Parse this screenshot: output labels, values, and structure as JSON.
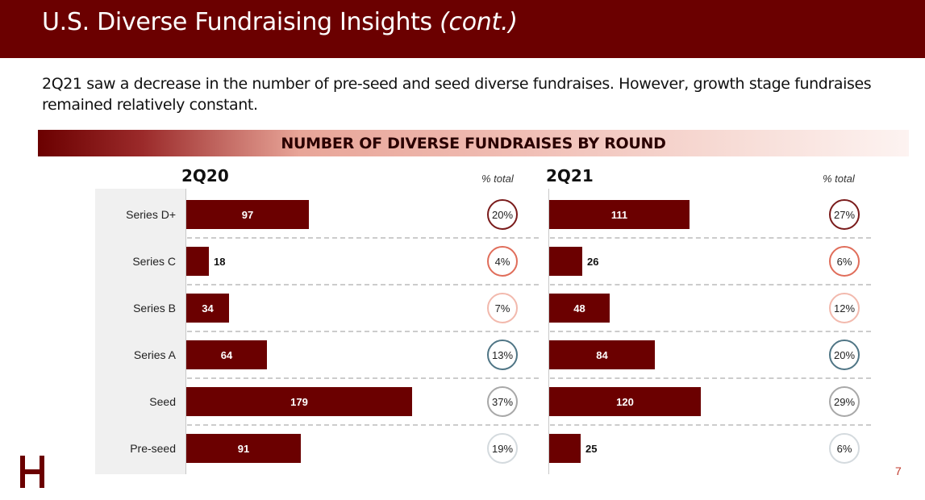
{
  "header": {
    "title": "U.S. Diverse Fundraising Insights",
    "title_suffix": "(cont.)"
  },
  "subtitle": "2Q21 saw a decrease in the number of pre-seed and seed diverse fundraises. However, growth stage fundraises remained relatively constant.",
  "page_number": "7",
  "chart_data": {
    "type": "bar",
    "orientation": "horizontal",
    "title": "NUMBER OF DIVERSE FUNDRAISES BY ROUND",
    "categories": [
      "Series D+",
      "Series C",
      "Series B",
      "Series A",
      "Seed",
      "Pre-seed"
    ],
    "pct_header": "% total",
    "panels": [
      {
        "name": "2Q20",
        "values": [
          97,
          18,
          34,
          64,
          179,
          91
        ],
        "pct": [
          "20%",
          "4%",
          "7%",
          "13%",
          "37%",
          "19%"
        ]
      },
      {
        "name": "2Q21",
        "values": [
          111,
          26,
          48,
          84,
          120,
          25
        ],
        "pct": [
          "27%",
          "6%",
          "12%",
          "20%",
          "29%",
          "6%"
        ]
      }
    ],
    "xlim": [
      0,
      200
    ],
    "circle_colors": [
      "#7a1b1b",
      "#e06d5a",
      "#f2b9ad",
      "#4f7585",
      "#a8a8a8",
      "#d4dade"
    ],
    "bar_color": "#6b0000",
    "grid": false,
    "legend": "none"
  }
}
